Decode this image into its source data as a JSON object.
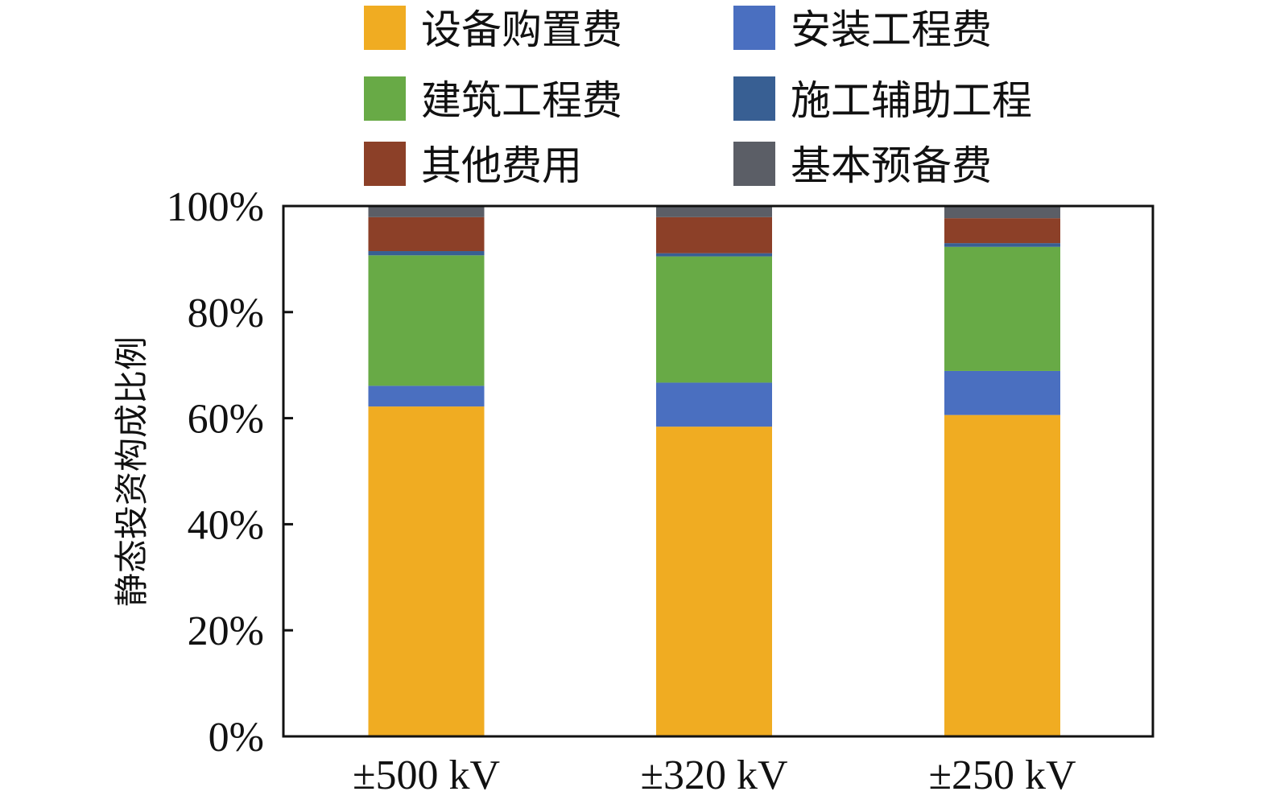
{
  "chart_data": {
    "type": "bar",
    "stacked": true,
    "ylabel": "静态投资构成比例",
    "xlabel": "",
    "ylim": [
      0,
      100
    ],
    "yticks": [
      0,
      20,
      40,
      60,
      80,
      100
    ],
    "ytick_labels": [
      "0%",
      "20%",
      "40%",
      "60%",
      "80%",
      "100%"
    ],
    "categories": [
      "±500 kV",
      "±320 kV",
      "±250 kV"
    ],
    "legend_position": "top",
    "series": [
      {
        "name": "设备购置费",
        "color": "#F0AC22",
        "values": [
          62.2,
          58.4,
          60.6
        ]
      },
      {
        "name": "安装工程费",
        "color": "#4A6FC0",
        "values": [
          3.9,
          8.3,
          8.3
        ]
      },
      {
        "name": "建筑工程费",
        "color": "#68AA46",
        "values": [
          24.6,
          23.8,
          23.4
        ]
      },
      {
        "name": "施工辅助工程",
        "color": "#385F93",
        "values": [
          0.8,
          0.6,
          0.7
        ]
      },
      {
        "name": "其他费用",
        "color": "#8C4028",
        "values": [
          6.4,
          6.8,
          4.7
        ]
      },
      {
        "name": "基本预备费",
        "color": "#5B5E66",
        "values": [
          2.1,
          2.1,
          2.3
        ]
      }
    ]
  }
}
